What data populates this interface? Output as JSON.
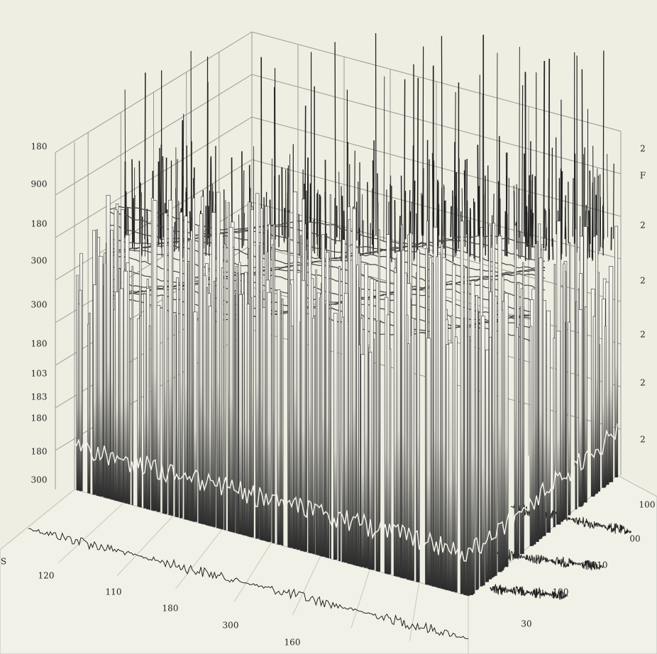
{
  "left_axis_labels": [
    "180",
    "900",
    "180",
    "300",
    "300",
    "180",
    "103",
    "183",
    "180",
    "180",
    "300"
  ],
  "right_axis_labels": [
    "2",
    "F",
    "2",
    "2",
    "2",
    "2",
    "2"
  ],
  "bottom_axis_labels": [
    "S",
    "120",
    "110",
    "180",
    "300",
    "160"
  ],
  "side_axis_labels": [
    "100",
    "00",
    "110",
    "100",
    "30"
  ]
}
